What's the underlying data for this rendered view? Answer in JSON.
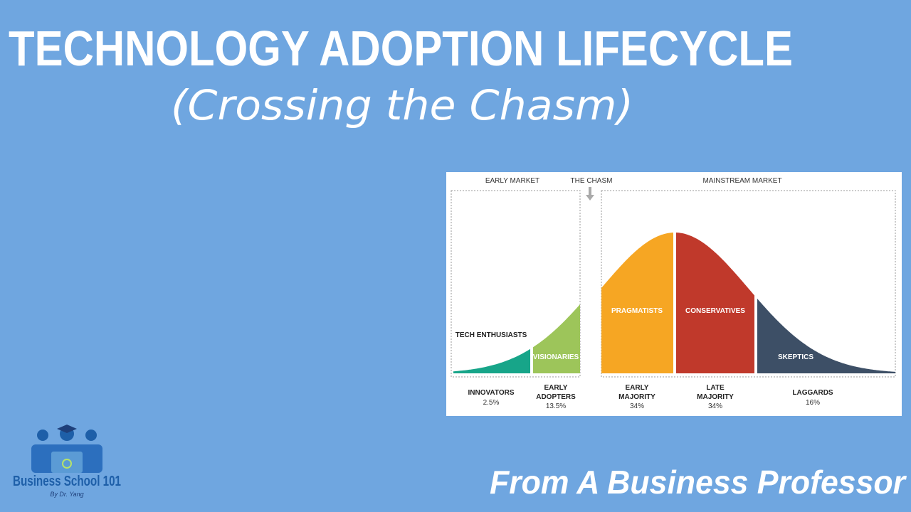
{
  "title": "TECHNOLOGY ADOPTION LIFECYCLE",
  "subtitle": "(Crossing the Chasm)",
  "diagram": {
    "headers": {
      "early_market": "EARLY MARKET",
      "chasm": "THE CHASM",
      "mainstream_market": "MAINSTREAM MARKET"
    },
    "segments": [
      {
        "label": "TECH ENTHUSIASTS",
        "name": [
          "INNOVATORS"
        ],
        "share": "2.5%"
      },
      {
        "label": "VISIONARIES",
        "name": [
          "EARLY",
          "ADOPTERS"
        ],
        "share": "13.5%"
      },
      {
        "label": "PRAGMATISTS",
        "name": [
          "EARLY",
          "MAJORITY"
        ],
        "share": "34%"
      },
      {
        "label": "CONSERVATIVES",
        "name": [
          "LATE",
          "MAJORITY"
        ],
        "share": "34%"
      },
      {
        "label": "SKEPTICS",
        "name": [
          "LAGGARDS"
        ],
        "share": "16%"
      }
    ]
  },
  "logo": {
    "name": "Business School 101",
    "byline": "By Dr. Yang"
  },
  "footer": "From A Business Professor"
}
